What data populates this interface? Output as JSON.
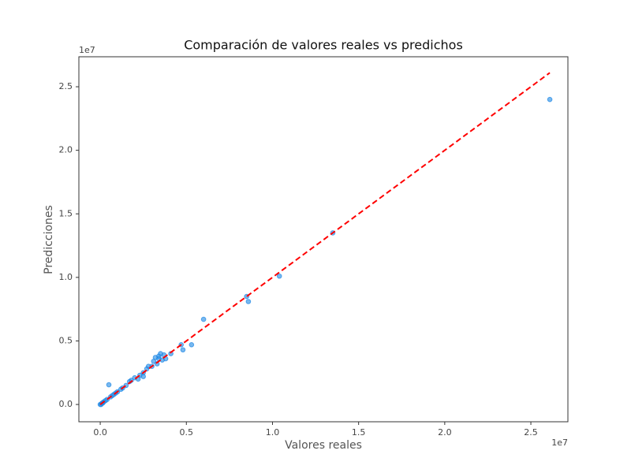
{
  "chart_data": {
    "type": "scatter",
    "title": "Comparación de valores reales vs predichos",
    "x_label": "Valores reales",
    "y_label": "Predicciones",
    "x_offset_label": "1e7",
    "y_offset_label": "1e7",
    "xlim": [
      -0.124,
      2.715
    ],
    "ylim": [
      -0.136,
      2.736
    ],
    "xticks": [
      {
        "value": 0,
        "label": "0.0"
      },
      0.5,
      {
        "value": 1,
        "label": "1.0"
      },
      1.5,
      {
        "value": 2,
        "label": "2.0"
      },
      2.5
    ],
    "yticks": [
      {
        "value": 0,
        "label": "0.0"
      },
      0.5,
      {
        "value": 1,
        "label": "1.0"
      },
      1.5,
      {
        "value": 2,
        "label": "2.0"
      },
      2.5
    ],
    "grid": false,
    "series": [
      {
        "color": "#1e88e5",
        "x": [
          2.61,
          1.35,
          1.04,
          0.86,
          0.85,
          0.6,
          0.53,
          0.48,
          0.47,
          0.41,
          0.37,
          0.35,
          0.34,
          0.33,
          0.32,
          0.31,
          0.34,
          0.28,
          0.25,
          0.23,
          0.2,
          0.18,
          0.15,
          0.12,
          0.1,
          0.08,
          0.06,
          0.05,
          0.04,
          0.03,
          0.02,
          0.01,
          0.005,
          0.0,
          0.015,
          0.25,
          0.22,
          0.17,
          0.13,
          0.09,
          0.07,
          0.36,
          0.38,
          0.3,
          0.27
        ],
        "values": [
          2.4,
          1.35,
          1.01,
          0.81,
          0.85,
          0.67,
          0.47,
          0.43,
          0.47,
          0.4,
          0.39,
          0.4,
          0.38,
          0.32,
          0.37,
          0.34,
          0.36,
          0.3,
          0.25,
          0.23,
          0.21,
          0.19,
          0.15,
          0.12,
          0.1,
          0.08,
          0.06,
          0.155,
          0.04,
          0.03,
          0.02,
          0.01,
          0.0,
          0.0,
          0.012,
          0.22,
          0.2,
          0.18,
          0.13,
          0.09,
          0.07,
          0.35,
          0.36,
          0.3,
          0.28
        ]
      }
    ],
    "reference_line": {
      "color": "#ff0000",
      "x": [
        0,
        2.61
      ],
      "values": [
        0,
        2.61
      ]
    }
  }
}
